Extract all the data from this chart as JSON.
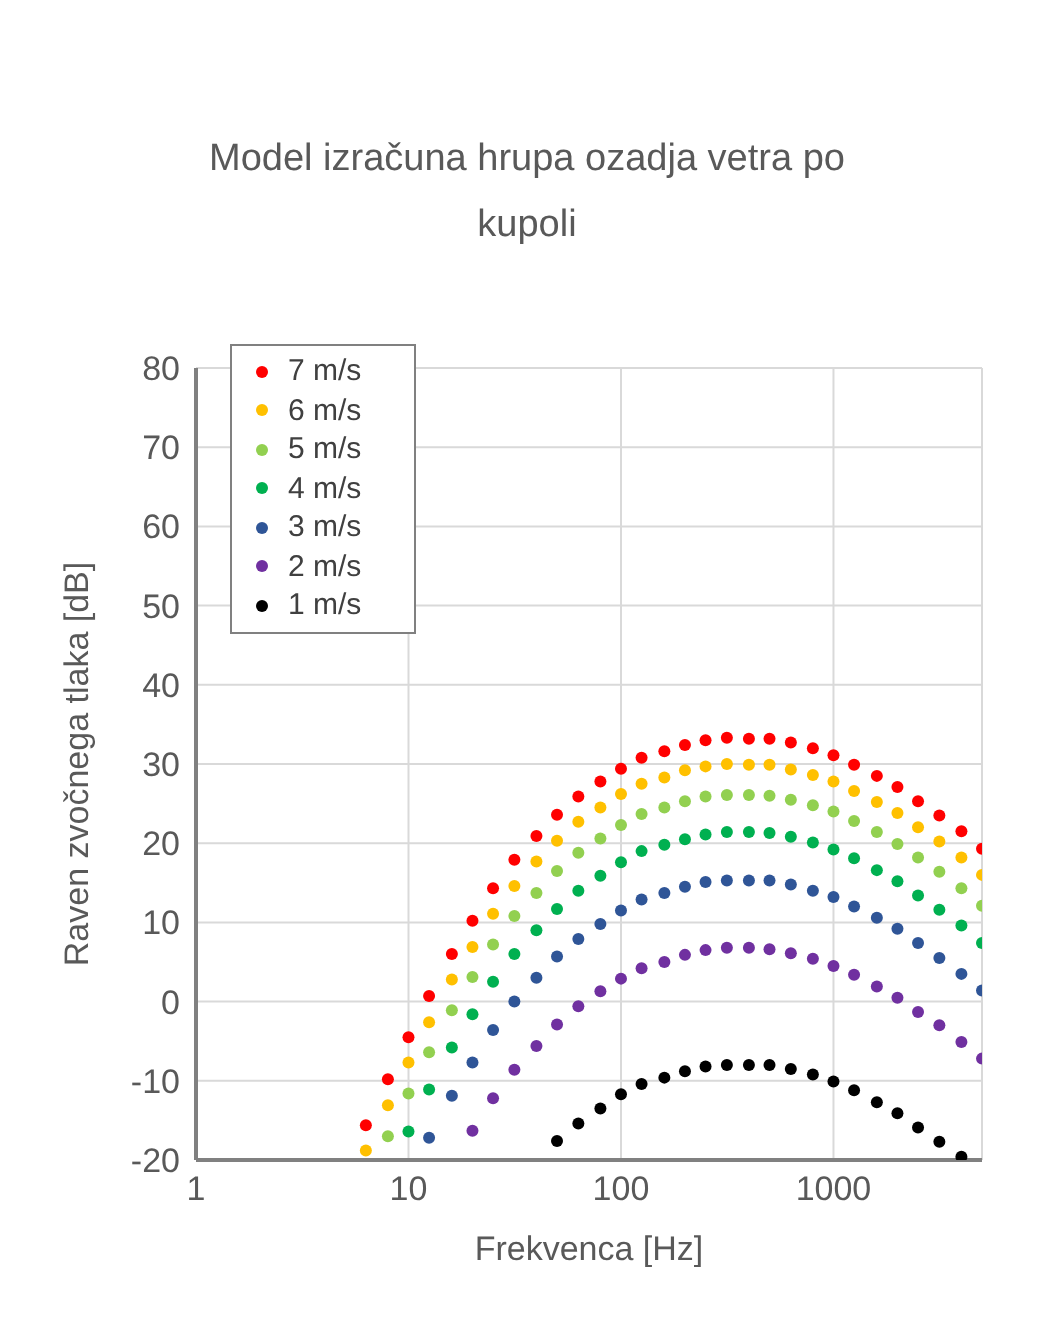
{
  "chart_data": {
    "type": "scatter",
    "title": "Model izračuna hrupa ozadja vetra po kupoli",
    "xlabel": "Frekvenca [Hz]",
    "ylabel": "Raven zvočnega tlaka [dB]",
    "log": "x",
    "grid": true,
    "legend": "top left",
    "marker": "circle",
    "xlim": [
      1,
      5000
    ],
    "xticks": [
      1,
      10,
      100,
      1000
    ],
    "ylim": [
      -20,
      80
    ],
    "yticks": [
      -20,
      -10,
      0,
      10,
      20,
      30,
      40,
      50,
      60,
      70,
      80
    ],
    "series": [
      {
        "name": "7 m/s",
        "color": "#ff0000",
        "x": [
          6.3,
          8,
          10,
          12.5,
          16,
          20,
          25,
          31.5,
          40,
          50,
          63,
          80,
          100,
          125,
          160,
          200,
          250,
          315,
          400,
          500,
          630,
          800,
          1000,
          1250,
          1600,
          2000,
          2500,
          3150,
          4000,
          5000
        ],
        "values": [
          -15.6,
          -9.8,
          -4.5,
          0.7,
          6.0,
          10.2,
          14.3,
          17.9,
          20.9,
          23.6,
          25.9,
          27.8,
          29.4,
          30.8,
          31.6,
          32.4,
          33.0,
          33.3,
          33.2,
          33.2,
          32.7,
          32.0,
          31.1,
          29.9,
          28.5,
          27.1,
          25.3,
          23.5,
          21.5,
          19.3
        ]
      },
      {
        "name": "6 m/s",
        "color": "#ffc000",
        "x": [
          6.3,
          8,
          10,
          12.5,
          16,
          20,
          25,
          31.5,
          40,
          50,
          63,
          80,
          100,
          125,
          160,
          200,
          250,
          315,
          400,
          500,
          630,
          800,
          1000,
          1250,
          1600,
          2000,
          2500,
          3150,
          4000,
          5000
        ],
        "values": [
          -18.8,
          -13.1,
          -7.7,
          -2.6,
          2.8,
          6.9,
          11.1,
          14.6,
          17.7,
          20.3,
          22.7,
          24.5,
          26.2,
          27.5,
          28.3,
          29.2,
          29.7,
          30.0,
          29.9,
          29.9,
          29.3,
          28.6,
          27.8,
          26.6,
          25.2,
          23.8,
          22.0,
          20.2,
          18.2,
          16.0
        ]
      },
      {
        "name": "5 m/s",
        "color": "#92d050",
        "x": [
          8,
          10,
          12.5,
          16,
          20,
          25,
          31.5,
          40,
          50,
          63,
          80,
          100,
          125,
          160,
          200,
          250,
          315,
          400,
          500,
          630,
          800,
          1000,
          1250,
          1600,
          2000,
          2500,
          3150,
          4000,
          5000
        ],
        "values": [
          -17.0,
          -11.6,
          -6.4,
          -1.1,
          3.1,
          7.2,
          10.8,
          13.7,
          16.5,
          18.8,
          20.6,
          22.3,
          23.7,
          24.5,
          25.3,
          25.9,
          26.1,
          26.1,
          26.0,
          25.5,
          24.8,
          24.0,
          22.8,
          21.4,
          19.9,
          18.2,
          16.4,
          14.3,
          12.1
        ]
      },
      {
        "name": "4 m/s",
        "color": "#00b050",
        "x": [
          10,
          12.5,
          16,
          20,
          25,
          31.5,
          40,
          50,
          63,
          80,
          100,
          125,
          160,
          200,
          250,
          315,
          400,
          500,
          630,
          800,
          1000,
          1250,
          1600,
          2000,
          2500,
          3150,
          4000,
          5000
        ],
        "values": [
          -16.4,
          -11.1,
          -5.8,
          -1.6,
          2.5,
          6.0,
          9.0,
          11.7,
          14.0,
          15.9,
          17.6,
          19.0,
          19.8,
          20.5,
          21.1,
          21.4,
          21.4,
          21.3,
          20.8,
          20.1,
          19.2,
          18.1,
          16.6,
          15.2,
          13.4,
          11.6,
          9.6,
          7.4
        ]
      },
      {
        "name": "3 m/s",
        "color": "#2f5597",
        "x": [
          12.5,
          16,
          20,
          25,
          31.5,
          40,
          50,
          63,
          80,
          100,
          125,
          160,
          200,
          250,
          315,
          400,
          500,
          630,
          800,
          1000,
          1250,
          1600,
          2000,
          2500,
          3150,
          4000,
          5000
        ],
        "values": [
          -17.2,
          -11.9,
          -7.7,
          -3.6,
          0.0,
          3.0,
          5.7,
          7.9,
          9.8,
          11.5,
          12.9,
          13.7,
          14.5,
          15.1,
          15.3,
          15.3,
          15.3,
          14.8,
          14.0,
          13.2,
          12.0,
          10.6,
          9.2,
          7.4,
          5.5,
          3.5,
          1.4
        ]
      },
      {
        "name": "2 m/s",
        "color": "#7030a0",
        "x": [
          20,
          25,
          31.5,
          40,
          50,
          63,
          80,
          100,
          125,
          160,
          200,
          250,
          315,
          400,
          500,
          630,
          800,
          1000,
          1250,
          1600,
          2000,
          2500,
          3150,
          4000,
          5000
        ],
        "values": [
          -16.3,
          -12.2,
          -8.6,
          -5.6,
          -2.9,
          -0.6,
          1.3,
          2.9,
          4.2,
          5.0,
          5.9,
          6.5,
          6.8,
          6.8,
          6.6,
          6.1,
          5.4,
          4.5,
          3.4,
          1.9,
          0.5,
          -1.3,
          -3.0,
          -5.1,
          -7.2
        ]
      },
      {
        "name": "1 m/s",
        "color": "#000000",
        "x": [
          50,
          63,
          80,
          100,
          125,
          160,
          200,
          250,
          315,
          400,
          500,
          630,
          800,
          1000,
          1250,
          1600,
          2000,
          2500,
          3150,
          4000
        ],
        "values": [
          -17.6,
          -15.4,
          -13.5,
          -11.7,
          -10.4,
          -9.6,
          -8.8,
          -8.2,
          -8.0,
          -8.0,
          -8.0,
          -8.5,
          -9.2,
          -10.1,
          -11.2,
          -12.7,
          -14.1,
          -15.9,
          -17.7,
          -19.6
        ]
      }
    ]
  }
}
